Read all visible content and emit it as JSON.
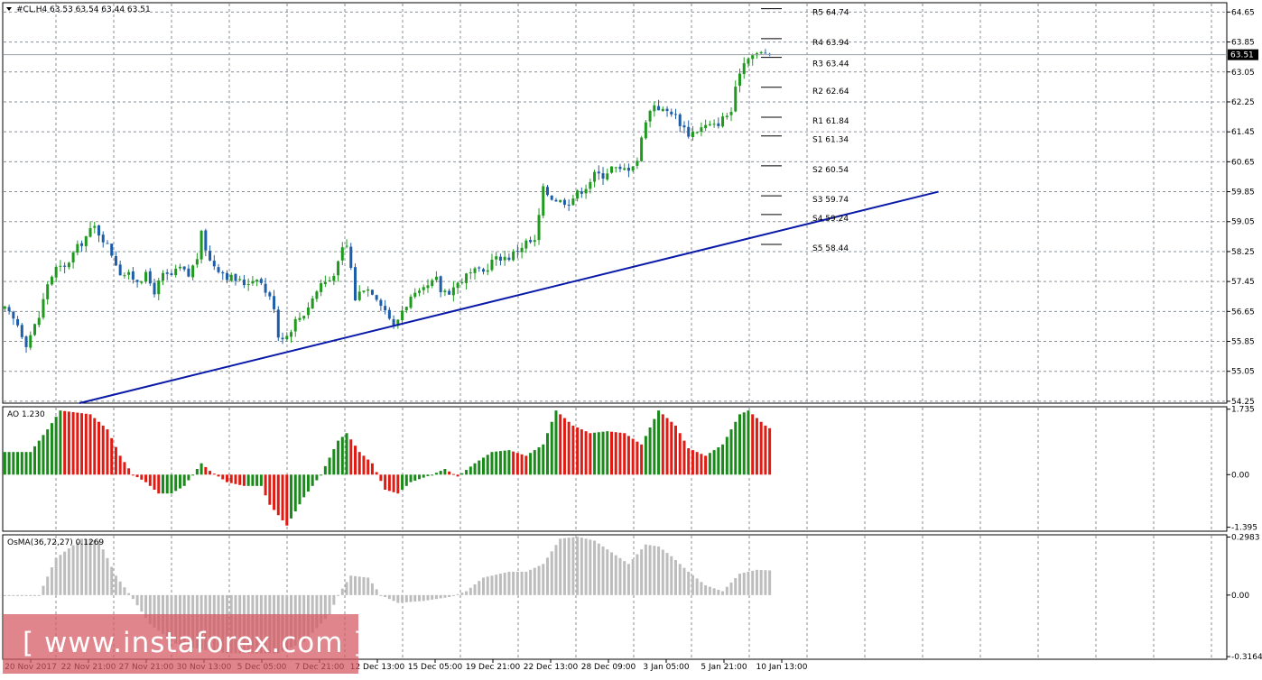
{
  "chart_data": [
    {
      "type": "candlestick",
      "title": "#CL,H4  63.53 63.54 63.44 63.51",
      "symbol": "#CL,H4",
      "last_bar": {
        "open": 63.53,
        "high": 63.54,
        "low": 63.44,
        "close": 63.51
      },
      "current_price_label": "63.51",
      "y_ticks": [
        "64.65",
        "63.85",
        "63.05",
        "62.25",
        "61.45",
        "60.65",
        "59.85",
        "59.05",
        "58.25",
        "57.45",
        "56.65",
        "55.85",
        "55.05",
        "54.25"
      ],
      "ylim": [
        54.2,
        64.9
      ],
      "x_tick_labels": [
        "20 Nov 2017",
        "22 Nov 21:00",
        "27 Nov 21:00",
        "30 Nov 13:00",
        "5 Dec 05:00",
        "7 Dec 21:00",
        "12 Dec 13:00",
        "15 Dec 05:00",
        "19 Dec 21:00",
        "22 Dec 13:00",
        "28 Dec 09:00",
        "3 Jan 05:00",
        "5 Jan 21:00",
        "10 Jan 13:00"
      ],
      "close_path": [
        [
          0,
          56.7
        ],
        [
          3,
          56.3
        ],
        [
          5,
          55.8
        ],
        [
          8,
          56.5
        ],
        [
          10,
          57.4
        ],
        [
          12,
          57.8
        ],
        [
          14,
          57.8
        ],
        [
          16,
          58.2
        ],
        [
          18,
          58.5
        ],
        [
          20,
          58.8
        ],
        [
          21,
          58.9
        ],
        [
          23,
          58.6
        ],
        [
          25,
          58.2
        ],
        [
          27,
          57.7
        ],
        [
          29,
          57.6
        ],
        [
          31,
          57.5
        ],
        [
          33,
          57.6
        ],
        [
          35,
          57.2
        ],
        [
          37,
          57.6
        ],
        [
          39,
          57.6
        ],
        [
          41,
          57.8
        ],
        [
          43,
          57.6
        ],
        [
          45,
          58.1
        ],
        [
          46,
          58.7
        ],
        [
          48,
          58.0
        ],
        [
          50,
          57.8
        ],
        [
          52,
          57.6
        ],
        [
          54,
          57.5
        ],
        [
          56,
          57.4
        ],
        [
          58,
          57.5
        ],
        [
          59,
          57.6
        ],
        [
          61,
          57.2
        ],
        [
          63,
          56.8
        ],
        [
          64,
          56.0
        ],
        [
          66,
          56.0
        ],
        [
          68,
          56.4
        ],
        [
          70,
          56.6
        ],
        [
          72,
          57.0
        ],
        [
          74,
          57.4
        ],
        [
          76,
          57.5
        ],
        [
          78,
          57.9
        ],
        [
          79,
          58.3
        ],
        [
          80,
          58.4
        ],
        [
          81,
          57.8
        ],
        [
          82,
          57.0
        ],
        [
          84,
          57.3
        ],
        [
          86,
          57.2
        ],
        [
          88,
          56.9
        ],
        [
          90,
          56.5
        ],
        [
          91,
          56.2
        ],
        [
          93,
          56.7
        ],
        [
          95,
          57.0
        ],
        [
          97,
          57.1
        ],
        [
          99,
          57.3
        ],
        [
          101,
          57.5
        ],
        [
          102,
          57.2
        ],
        [
          104,
          57.2
        ],
        [
          106,
          57.4
        ],
        [
          108,
          57.6
        ],
        [
          110,
          57.7
        ],
        [
          112,
          57.7
        ],
        [
          114,
          58.0
        ],
        [
          116,
          58.1
        ],
        [
          118,
          58.1
        ],
        [
          120,
          58.3
        ],
        [
          122,
          58.5
        ],
        [
          124,
          58.5
        ],
        [
          126,
          59.9
        ],
        [
          128,
          59.7
        ],
        [
          130,
          59.6
        ],
        [
          132,
          59.6
        ],
        [
          134,
          59.8
        ],
        [
          136,
          60.0
        ],
        [
          138,
          60.3
        ],
        [
          140,
          60.3
        ],
        [
          142,
          60.5
        ],
        [
          144,
          60.4
        ],
        [
          146,
          60.5
        ],
        [
          148,
          60.7
        ],
        [
          150,
          61.8
        ],
        [
          152,
          62.2
        ],
        [
          154,
          62.0
        ],
        [
          156,
          62.0
        ],
        [
          158,
          61.7
        ],
        [
          160,
          61.4
        ],
        [
          162,
          61.5
        ],
        [
          164,
          61.6
        ],
        [
          166,
          61.6
        ],
        [
          168,
          61.8
        ],
        [
          170,
          62.0
        ],
        [
          172,
          63.1
        ],
        [
          174,
          63.5
        ],
        [
          176,
          63.5
        ],
        [
          178,
          63.6
        ],
        [
          179,
          63.51
        ]
      ],
      "bars_total": 180,
      "pivot_levels": [
        {
          "label": "R5 64.74",
          "value": 64.74
        },
        {
          "label": "R4 63.94",
          "value": 63.94
        },
        {
          "label": "R3 63.44",
          "value": 63.44
        },
        {
          "label": "R2 62.64",
          "value": 62.64
        },
        {
          "label": "R1 61.84",
          "value": 61.84
        },
        {
          "label": "S1 61.34",
          "value": 61.34
        },
        {
          "label": "S2 60.54",
          "value": 60.54
        },
        {
          "label": "S3 59.74",
          "value": 59.74
        },
        {
          "label": "S4 59.24",
          "value": 59.24
        },
        {
          "label": "S5 58.44",
          "value": 58.44
        }
      ],
      "trendline": {
        "x": [
          18,
          219
        ],
        "y": [
          54.2,
          59.85
        ]
      },
      "colors": {
        "bull": "#1f9a1f",
        "bear": "#1e5ea8",
        "trendline": "#0a1aa8",
        "grid": "#8a8f96"
      }
    },
    {
      "type": "bar",
      "title": "AO 1.230",
      "y_ticks": [
        "1.735",
        "0.00",
        "-1.395"
      ],
      "ylim": [
        -1.5,
        1.8
      ],
      "values_path": [
        [
          0,
          0.6
        ],
        [
          6,
          0.6
        ],
        [
          10,
          1.2
        ],
        [
          13,
          1.7
        ],
        [
          20,
          1.6
        ],
        [
          24,
          1.2
        ],
        [
          27,
          0.5
        ],
        [
          30,
          0.0
        ],
        [
          33,
          -0.2
        ],
        [
          36,
          -0.5
        ],
        [
          39,
          -0.5
        ],
        [
          42,
          -0.3
        ],
        [
          46,
          0.3
        ],
        [
          48,
          0.1
        ],
        [
          52,
          -0.2
        ],
        [
          56,
          -0.3
        ],
        [
          60,
          -0.3
        ],
        [
          62,
          -0.8
        ],
        [
          66,
          -1.35
        ],
        [
          70,
          -0.6
        ],
        [
          74,
          0.0
        ],
        [
          78,
          0.9
        ],
        [
          80,
          1.1
        ],
        [
          83,
          0.6
        ],
        [
          86,
          0.3
        ],
        [
          89,
          -0.4
        ],
        [
          92,
          -0.5
        ],
        [
          95,
          -0.2
        ],
        [
          100,
          0.0
        ],
        [
          103,
          0.15
        ],
        [
          106,
          -0.05
        ],
        [
          110,
          0.3
        ],
        [
          114,
          0.6
        ],
        [
          118,
          0.65
        ],
        [
          122,
          0.5
        ],
        [
          126,
          0.8
        ],
        [
          129,
          1.7
        ],
        [
          133,
          1.3
        ],
        [
          137,
          1.1
        ],
        [
          141,
          1.15
        ],
        [
          145,
          1.1
        ],
        [
          149,
          0.8
        ],
        [
          153,
          1.7
        ],
        [
          157,
          1.3
        ],
        [
          160,
          0.7
        ],
        [
          164,
          0.5
        ],
        [
          168,
          0.8
        ],
        [
          172,
          1.6
        ],
        [
          174,
          1.7
        ],
        [
          178,
          1.3
        ],
        [
          179,
          1.23
        ]
      ],
      "colors": {
        "up": "#1a8a1a",
        "down": "#e01b14"
      }
    },
    {
      "type": "bar",
      "title": "OsMA(36,72,27) 0.1269",
      "y_ticks": [
        "0.2983",
        "0.00",
        "-0.3164"
      ],
      "ylim": [
        -0.33,
        0.31
      ],
      "values_path": [
        [
          0,
          0.0
        ],
        [
          8,
          0.0
        ],
        [
          12,
          0.19
        ],
        [
          18,
          0.29
        ],
        [
          22,
          0.28
        ],
        [
          26,
          0.1
        ],
        [
          30,
          -0.02
        ],
        [
          34,
          -0.15
        ],
        [
          40,
          -0.25
        ],
        [
          46,
          -0.28
        ],
        [
          52,
          -0.3
        ],
        [
          58,
          -0.3
        ],
        [
          64,
          -0.3
        ],
        [
          70,
          -0.24
        ],
        [
          76,
          -0.1
        ],
        [
          78,
          0.0
        ],
        [
          81,
          0.1
        ],
        [
          85,
          0.09
        ],
        [
          88,
          0.0
        ],
        [
          92,
          -0.04
        ],
        [
          98,
          -0.03
        ],
        [
          104,
          -0.01
        ],
        [
          108,
          0.02
        ],
        [
          112,
          0.09
        ],
        [
          118,
          0.12
        ],
        [
          122,
          0.12
        ],
        [
          126,
          0.16
        ],
        [
          130,
          0.29
        ],
        [
          134,
          0.3
        ],
        [
          138,
          0.28
        ],
        [
          142,
          0.22
        ],
        [
          146,
          0.16
        ],
        [
          150,
          0.26
        ],
        [
          153,
          0.25
        ],
        [
          156,
          0.2
        ],
        [
          160,
          0.12
        ],
        [
          164,
          0.05
        ],
        [
          168,
          0.02
        ],
        [
          172,
          0.11
        ],
        [
          176,
          0.13
        ],
        [
          179,
          0.1269
        ]
      ],
      "colors": {
        "bar": "#bdbdbd"
      }
    }
  ],
  "watermark": "[  www.instaforex.com  ]"
}
